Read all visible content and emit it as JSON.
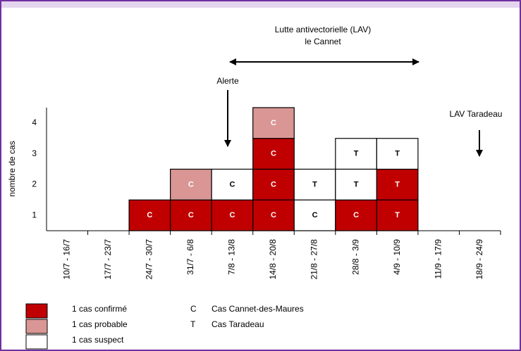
{
  "chart_data": {
    "type": "epicurve",
    "y_label": "nombre de cas",
    "categories": [
      "10/7 - 16/7",
      "17/7 - 23/7",
      "24/7 - 30/7",
      "31/7 - 6/8",
      "7/8 - 13/8",
      "14/8 - 20/8",
      "21/8 - 27/8",
      "28/8 - 3/9",
      "4/9 - 10/9",
      "11/9 - 17/9",
      "18/9 - 24/9"
    ],
    "series": [
      {
        "name": "1 cas confirmé",
        "color": "#c00000",
        "values": [
          0,
          0,
          1,
          1,
          1,
          3,
          0,
          1,
          2,
          0,
          0
        ]
      },
      {
        "name": "1 cas probable",
        "color": "#d99694",
        "values": [
          0,
          0,
          0,
          1,
          0,
          1,
          0,
          0,
          0,
          0,
          0
        ]
      },
      {
        "name": "1 cas suspect",
        "color": "#ffffff",
        "values": [
          0,
          0,
          0,
          0,
          1,
          0,
          2,
          2,
          1,
          0,
          0
        ]
      }
    ],
    "box_labels": [
      [],
      [],
      [
        "C"
      ],
      [
        "C",
        "C"
      ],
      [
        "C",
        "C"
      ],
      [
        "C",
        "C",
        "C",
        "C"
      ],
      [
        "C",
        "T"
      ],
      [
        "C",
        "T",
        "T"
      ],
      [
        "T",
        "T",
        "T"
      ],
      [],
      []
    ],
    "letter_legend": [
      {
        "letter": "C",
        "label": "Cas Cannet-des-Maures"
      },
      {
        "letter": "T",
        "label": "Cas Taradeau"
      }
    ],
    "ylim": [
      0,
      4
    ],
    "yticks": [
      {
        "value": 0.5,
        "label": "1"
      },
      {
        "value": 1.5,
        "label": "2"
      },
      {
        "value": 2.5,
        "label": "3"
      },
      {
        "value": 3.5,
        "label": "4"
      }
    ],
    "annotations": {
      "lav_cannet": [
        "Lutte antivectorielle  (LAV)",
        "le Cannet"
      ],
      "alerte": "Alerte",
      "lav_taradeau": "LAV Taradeau"
    }
  }
}
